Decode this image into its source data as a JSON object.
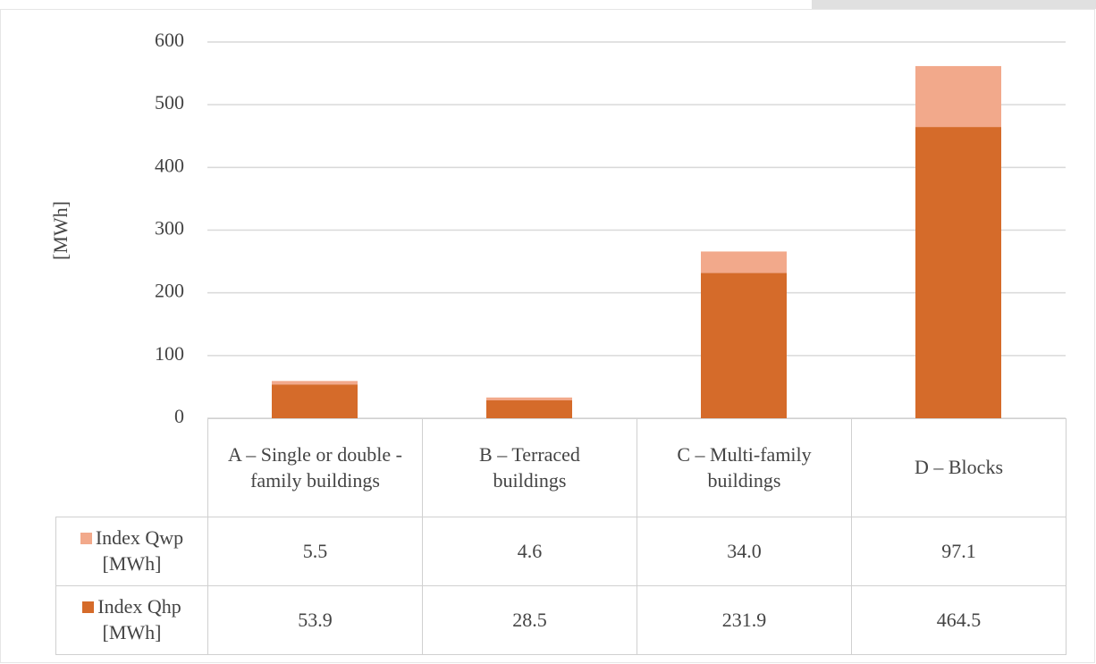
{
  "chart_data": {
    "type": "stacked_bar",
    "y_label": "[MWh]",
    "categories": [
      "A – Single or double -family buildings",
      "B – Terraced buildings",
      "C – Multi-family buildings",
      "D – Blocks"
    ],
    "series": [
      {
        "name": "Index Qwp [MWh]",
        "color": "#f2a98b",
        "values": [
          5.5,
          4.6,
          34.0,
          97.1
        ],
        "value_labels": [
          "5.5",
          "4.6",
          "34.0",
          "97.1"
        ]
      },
      {
        "name": "Index Qhp [MWh]",
        "color": "#d56b2a",
        "values": [
          53.9,
          28.5,
          231.9,
          464.5
        ],
        "value_labels": [
          "53.9",
          "28.5",
          "231.9",
          "464.5"
        ]
      }
    ],
    "ylim": [
      0,
      600
    ],
    "yticks": [
      0,
      100,
      200,
      300,
      400,
      500,
      600
    ],
    "grid": true
  }
}
